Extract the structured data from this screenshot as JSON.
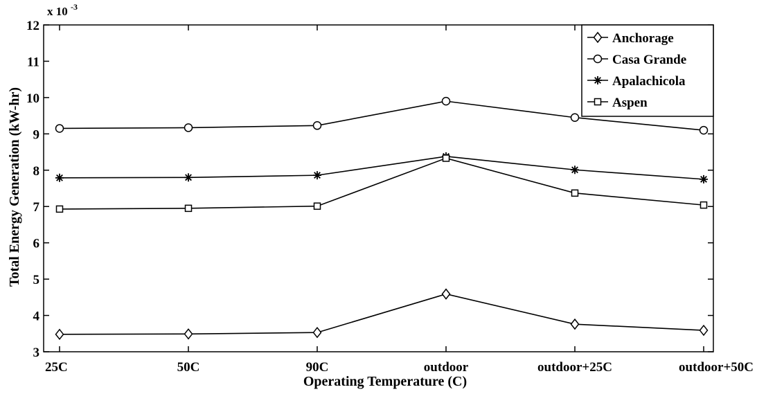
{
  "chart_data": {
    "type": "line",
    "xlabel": "Operating Temperature (C)",
    "ylabel": "Total Energy Generation (kW-hr)",
    "categories": [
      "25C",
      "50C",
      "90C",
      "outdoor",
      "outdoor+25C",
      "outdoor+50C"
    ],
    "ylim": [
      3,
      12
    ],
    "yticks": [
      3,
      4,
      5,
      6,
      7,
      8,
      9,
      10,
      11,
      12
    ],
    "y_multiplier_base": "x 10",
    "y_multiplier_exponent": "-3",
    "grid": false,
    "legend_position": "top-right",
    "series": [
      {
        "name": "Anchorage",
        "marker": "diamond",
        "values": [
          3.48,
          3.49,
          3.53,
          4.59,
          3.76,
          3.59
        ]
      },
      {
        "name": "Casa Grande",
        "marker": "circle",
        "values": [
          9.15,
          9.17,
          9.23,
          9.9,
          9.45,
          9.1
        ]
      },
      {
        "name": "Apalachicola",
        "marker": "asterisk",
        "values": [
          7.79,
          7.8,
          7.86,
          8.38,
          8.01,
          7.75
        ]
      },
      {
        "name": "Aspen",
        "marker": "square",
        "values": [
          6.93,
          6.95,
          7.01,
          8.33,
          7.37,
          7.04
        ]
      }
    ]
  }
}
